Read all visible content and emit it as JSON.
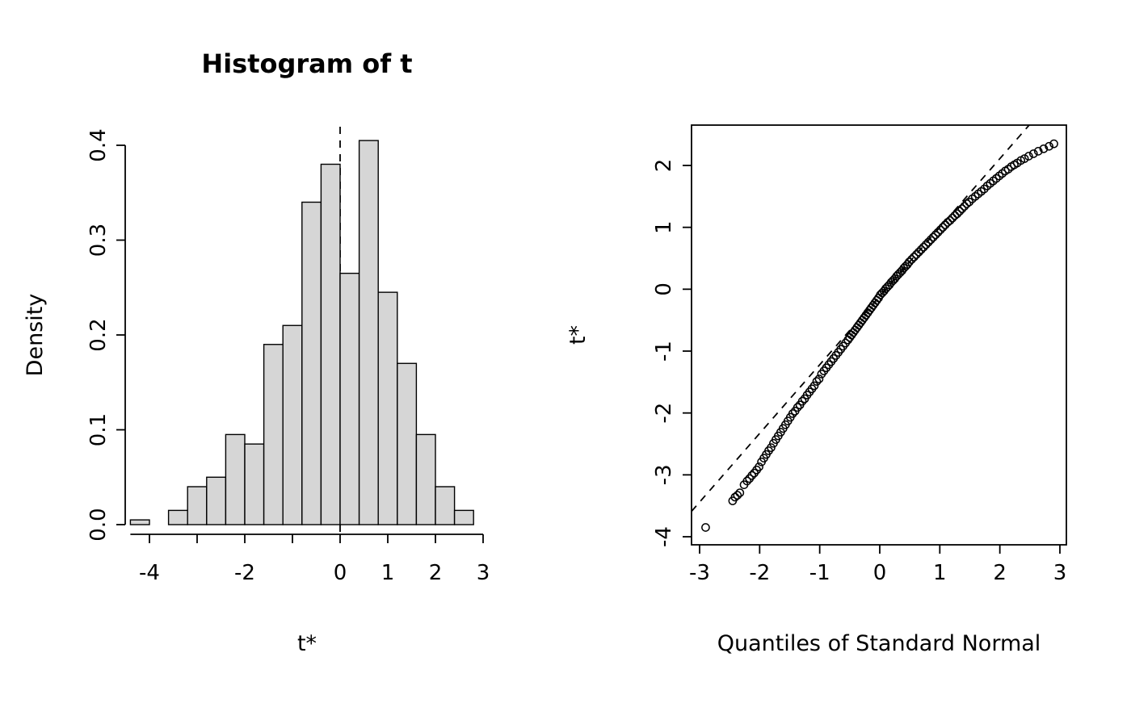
{
  "figure": {
    "background": "#ffffff",
    "foreground": "#000000"
  },
  "chart_data": [
    {
      "type": "bar",
      "title": "Histogram of t",
      "xlabel": "t*",
      "ylabel": "Density",
      "bar_fill": "#d6d6d6",
      "bar_stroke": "#000000",
      "grid": false,
      "bins": {
        "start": -4.4,
        "width": 0.4
      },
      "densities": [
        0.005,
        0,
        0.015,
        0.04,
        0.05,
        0.095,
        0.085,
        0.19,
        0.21,
        0.34,
        0.38,
        0.265,
        0.405,
        0.245,
        0.17,
        0.095,
        0.04,
        0.015
      ],
      "x_ticks": [
        -4,
        -3,
        -2,
        -1,
        0,
        1,
        2,
        3
      ],
      "x_tick_labels": [
        "-4",
        "",
        "-2",
        "",
        "0",
        "1",
        "2",
        "3"
      ],
      "y_ticks": [
        0,
        0.1,
        0.2,
        0.3,
        0.4
      ],
      "y_tick_labels": [
        "0.0",
        "0.1",
        "0.2",
        "0.3",
        "0.4"
      ],
      "xlim": [
        -4.65,
        3.1
      ],
      "ylim": [
        0,
        0.42
      ],
      "vline": {
        "x": 0,
        "style": "dashed"
      }
    },
    {
      "type": "scatter",
      "title": "",
      "xlabel": "Quantiles of Standard Normal",
      "ylabel": "t*",
      "marker": "open-circle",
      "grid": false,
      "boxed": true,
      "x_ticks": [
        -3,
        -2,
        -1,
        0,
        1,
        2,
        3
      ],
      "x_tick_labels": [
        "-3",
        "-2",
        "-1",
        "0",
        "1",
        "2",
        "3"
      ],
      "y_ticks": [
        -4,
        -3,
        -2,
        -1,
        0,
        1,
        2
      ],
      "y_tick_labels": [
        "-4",
        "-3",
        "-2",
        "-1",
        "0",
        "1",
        "2"
      ],
      "xlim": [
        -3.15,
        3.1
      ],
      "ylim": [
        -4.15,
        2.65
      ],
      "ref_line": {
        "style": "dashed",
        "slope": 1.11,
        "intercept": -0.11
      },
      "points": [
        [
          -2.9,
          -3.85
        ],
        [
          -2.45,
          -3.42
        ],
        [
          -2.41,
          -3.36
        ],
        [
          -2.37,
          -3.33
        ],
        [
          -2.33,
          -3.29
        ],
        [
          -2.26,
          -3.16
        ],
        [
          -2.21,
          -3.1
        ],
        [
          -2.17,
          -3.06
        ],
        [
          -2.13,
          -3.01
        ],
        [
          -2.09,
          -2.97
        ],
        [
          -2.05,
          -2.92
        ],
        [
          -2.01,
          -2.87
        ],
        [
          -1.97,
          -2.79
        ],
        [
          -1.93,
          -2.73
        ],
        [
          -1.89,
          -2.67
        ],
        [
          -1.85,
          -2.61
        ],
        [
          -1.81,
          -2.56
        ],
        [
          -1.77,
          -2.49
        ],
        [
          -1.73,
          -2.43
        ],
        [
          -1.69,
          -2.37
        ],
        [
          -1.65,
          -2.31
        ],
        [
          -1.61,
          -2.25
        ],
        [
          -1.57,
          -2.19
        ],
        [
          -1.53,
          -2.13
        ],
        [
          -1.49,
          -2.07
        ],
        [
          -1.45,
          -2.01
        ],
        [
          -1.41,
          -1.97
        ],
        [
          -1.37,
          -1.91
        ],
        [
          -1.33,
          -1.87
        ],
        [
          -1.29,
          -1.81
        ],
        [
          -1.25,
          -1.77
        ],
        [
          -1.21,
          -1.71
        ],
        [
          -1.17,
          -1.66
        ],
        [
          -1.13,
          -1.61
        ],
        [
          -1.09,
          -1.56
        ],
        [
          -1.05,
          -1.49
        ],
        [
          -1.01,
          -1.45
        ],
        [
          -0.97,
          -1.37
        ],
        [
          -0.93,
          -1.32
        ],
        [
          -0.89,
          -1.27
        ],
        [
          -0.85,
          -1.22
        ],
        [
          -0.81,
          -1.17
        ],
        [
          -0.77,
          -1.12
        ],
        [
          -0.73,
          -1.07
        ],
        [
          -0.69,
          -1.02
        ],
        [
          -0.65,
          -0.97
        ],
        [
          -0.61,
          -0.92
        ],
        [
          -0.57,
          -0.87
        ],
        [
          -0.53,
          -0.82
        ],
        [
          -0.5,
          -0.78
        ],
        [
          -0.47,
          -0.74
        ],
        [
          -0.44,
          -0.7
        ],
        [
          -0.41,
          -0.66
        ],
        [
          -0.38,
          -0.62
        ],
        [
          -0.35,
          -0.58
        ],
        [
          -0.32,
          -0.54
        ],
        [
          -0.29,
          -0.5
        ],
        [
          -0.26,
          -0.46
        ],
        [
          -0.23,
          -0.42
        ],
        [
          -0.2,
          -0.38
        ],
        [
          -0.17,
          -0.34
        ],
        [
          -0.14,
          -0.3
        ],
        [
          -0.11,
          -0.26
        ],
        [
          -0.08,
          -0.22
        ],
        [
          -0.05,
          -0.18
        ],
        [
          -0.02,
          -0.14
        ],
        [
          0.01,
          -0.09
        ],
        [
          0.04,
          -0.06
        ],
        [
          0.07,
          -0.03
        ],
        [
          0.1,
          0.01
        ],
        [
          0.13,
          0.04
        ],
        [
          0.16,
          0.07
        ],
        [
          0.19,
          0.11
        ],
        [
          0.22,
          0.14
        ],
        [
          0.25,
          0.17
        ],
        [
          0.28,
          0.21
        ],
        [
          0.31,
          0.24
        ],
        [
          0.34,
          0.27
        ],
        [
          0.37,
          0.3
        ],
        [
          0.4,
          0.34
        ],
        [
          0.43,
          0.37
        ],
        [
          0.46,
          0.4
        ],
        [
          0.49,
          0.44
        ],
        [
          0.53,
          0.48
        ],
        [
          0.57,
          0.52
        ],
        [
          0.61,
          0.56
        ],
        [
          0.65,
          0.6
        ],
        [
          0.69,
          0.64
        ],
        [
          0.73,
          0.68
        ],
        [
          0.77,
          0.72
        ],
        [
          0.81,
          0.76
        ],
        [
          0.85,
          0.8
        ],
        [
          0.89,
          0.84
        ],
        [
          0.93,
          0.88
        ],
        [
          0.97,
          0.92
        ],
        [
          1.01,
          0.96
        ],
        [
          1.05,
          1.0
        ],
        [
          1.09,
          1.04
        ],
        [
          1.13,
          1.08
        ],
        [
          1.17,
          1.11
        ],
        [
          1.21,
          1.15
        ],
        [
          1.25,
          1.19
        ],
        [
          1.29,
          1.22
        ],
        [
          1.33,
          1.26
        ],
        [
          1.37,
          1.3
        ],
        [
          1.41,
          1.34
        ],
        [
          1.45,
          1.38
        ],
        [
          1.49,
          1.41
        ],
        [
          1.54,
          1.46
        ],
        [
          1.59,
          1.5
        ],
        [
          1.64,
          1.54
        ],
        [
          1.69,
          1.58
        ],
        [
          1.74,
          1.62
        ],
        [
          1.79,
          1.67
        ],
        [
          1.84,
          1.71
        ],
        [
          1.89,
          1.75
        ],
        [
          1.94,
          1.79
        ],
        [
          1.99,
          1.83
        ],
        [
          2.04,
          1.87
        ],
        [
          2.09,
          1.91
        ],
        [
          2.14,
          1.94
        ],
        [
          2.19,
          1.98
        ],
        [
          2.24,
          2.01
        ],
        [
          2.29,
          2.04
        ],
        [
          2.35,
          2.08
        ],
        [
          2.41,
          2.11
        ],
        [
          2.48,
          2.15
        ],
        [
          2.56,
          2.19
        ],
        [
          2.64,
          2.23
        ],
        [
          2.73,
          2.27
        ],
        [
          2.82,
          2.31
        ],
        [
          2.9,
          2.35
        ]
      ]
    }
  ]
}
